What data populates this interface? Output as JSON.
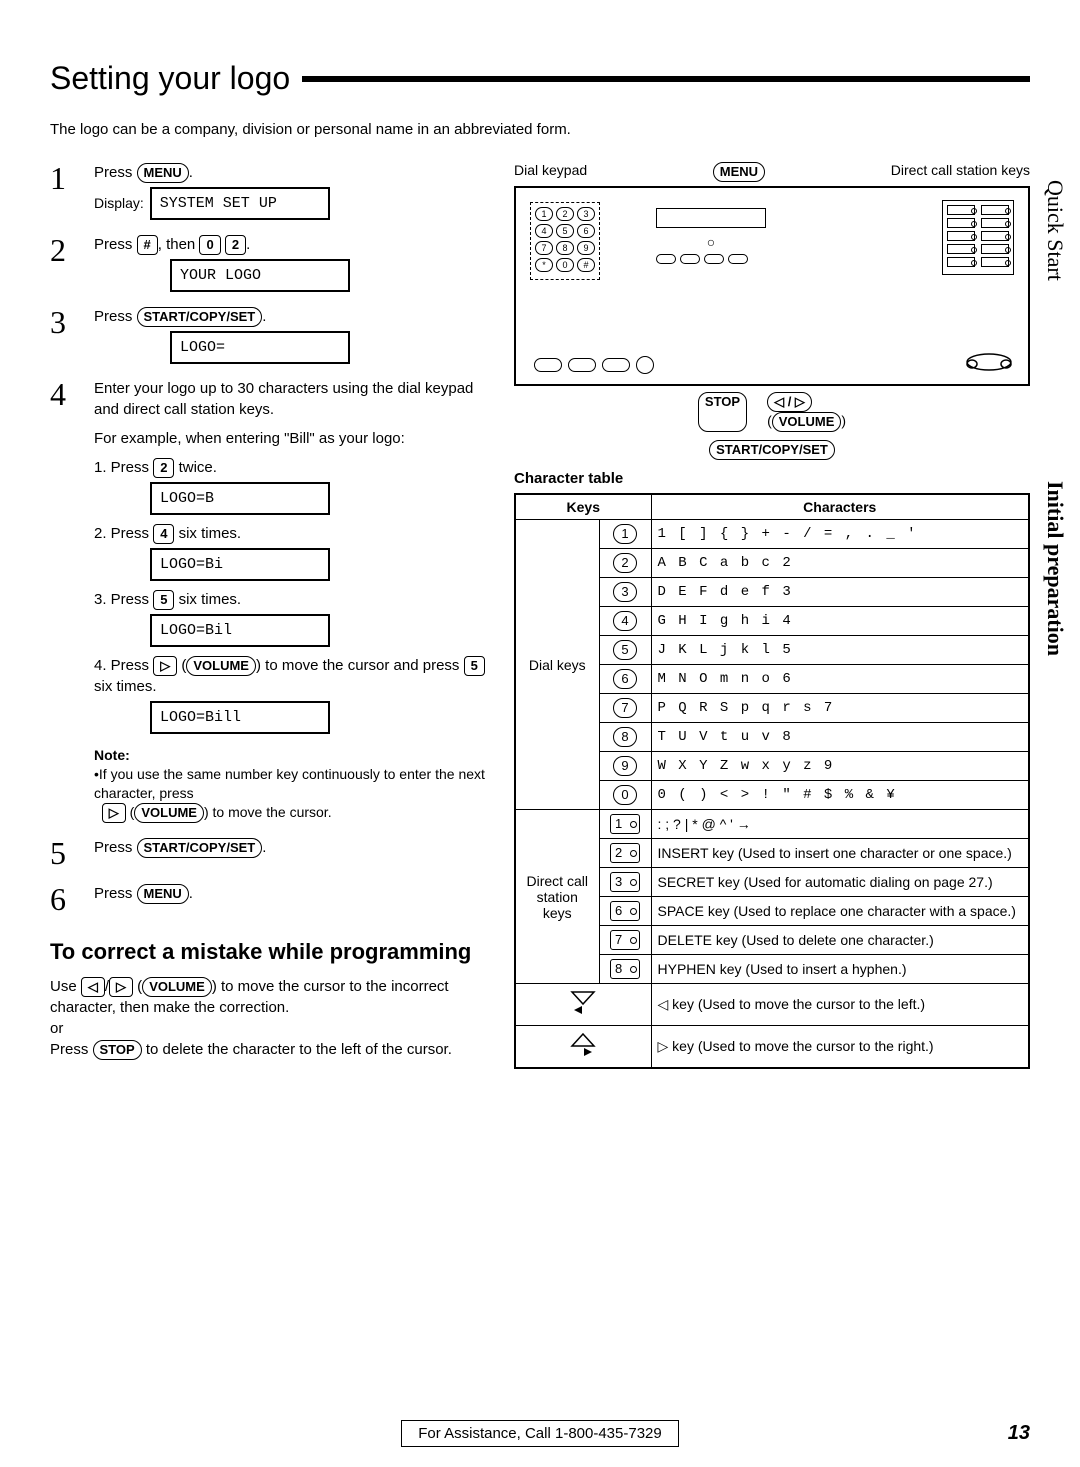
{
  "title": "Setting your logo",
  "intro": "The logo can be a company, division or personal name in an abbreviated form.",
  "side": {
    "top": "Quick Start",
    "bottom": "Initial preparation"
  },
  "steps": [
    {
      "num": "1",
      "text_before": "Press ",
      "key": "MENU",
      "text_after": ".",
      "display_label": "Display:",
      "display": "SYSTEM SET UP"
    },
    {
      "num": "2",
      "text_before": "Press ",
      "key": "#",
      "mid": ", then ",
      "key2": "0",
      "key3": "2",
      "text_after": ".",
      "display": "YOUR LOGO"
    },
    {
      "num": "3",
      "text_before": "Press ",
      "key": "START/COPY/SET",
      "text_after": ".",
      "display": "LOGO="
    },
    {
      "num": "4",
      "text": "Enter your logo up to 30 characters using the dial keypad and direct call station keys.",
      "example_intro": "For example, when entering \"Bill\" as your logo:",
      "subs": [
        {
          "label": "1. Press ",
          "key": "2",
          "after": " twice.",
          "display": "LOGO=B"
        },
        {
          "label": "2. Press ",
          "key": "4",
          "after": " six times.",
          "display": "LOGO=Bi"
        },
        {
          "label": "3. Press ",
          "key": "5",
          "after": " six times.",
          "display": "LOGO=Bil"
        },
        {
          "label": "4. Press ",
          "key": "▷",
          "vol": "VOLUME",
          "after": " to move the cursor and press ",
          "key2": "5",
          "after2": " six times.",
          "display": "LOGO=Bill"
        }
      ],
      "note_title": "Note:",
      "note": "If you use the same number key continuously to enter the next character, press ",
      "note_key": "▷",
      "note_vol": "VOLUME",
      "note_after": " to move the cursor."
    },
    {
      "num": "5",
      "text_before": "Press ",
      "key": "START/COPY/SET",
      "text_after": "."
    },
    {
      "num": "6",
      "text_before": "Press ",
      "key": "MENU",
      "text_after": "."
    }
  ],
  "correct": {
    "heading": "To correct a mistake while programming",
    "p1a": "Use ",
    "k1": "◁",
    "k2": "▷",
    "vol": "VOLUME",
    "p1b": " to move the cursor to the incorrect character, then make the correction.",
    "or": "or",
    "p2a": "Press ",
    "stop": "STOP",
    "p2b": " to delete the character to the left of the cursor."
  },
  "diagram": {
    "label_dial": "Dial keypad",
    "label_menu": "MENU",
    "label_station": "Direct call station keys",
    "below_stop": "STOP",
    "below_arrows": "◁ / ▷",
    "below_vol": "VOLUME",
    "below_scs": "START/COPY/SET"
  },
  "char_table": {
    "title": "Character table",
    "col_keys": "Keys",
    "col_chars": "Characters",
    "group_dial": "Dial keys",
    "group_station": "Direct call station keys",
    "rows_dial": [
      {
        "btn": "1",
        "chars": "1 [ ] { } + - / = , . _ '"
      },
      {
        "btn": "2",
        "chars": "A B C a b c 2"
      },
      {
        "btn": "3",
        "chars": "D E F d e f 3"
      },
      {
        "btn": "4",
        "chars": "G H I g h i 4"
      },
      {
        "btn": "5",
        "chars": "J K L j k l 5"
      },
      {
        "btn": "6",
        "chars": "M N O m n o 6"
      },
      {
        "btn": "7",
        "chars": "P Q R S p q r s 7"
      },
      {
        "btn": "8",
        "chars": "T U V t u v 8"
      },
      {
        "btn": "9",
        "chars": "W X Y Z w x y z 9"
      },
      {
        "btn": "0",
        "chars": "0 ( ) < > ! \" # $ % & ¥"
      }
    ],
    "rows_station": [
      {
        "btn": "1",
        "chars": ": ; ? | * @ ^ ' →"
      },
      {
        "btn": "2",
        "chars": "INSERT key (Used to insert one character or one space.)"
      },
      {
        "btn": "3",
        "chars": "SECRET key (Used for automatic dialing on page 27.)"
      },
      {
        "btn": "6",
        "chars": "SPACE key (Used to replace one character with a space.)"
      },
      {
        "btn": "7",
        "chars": "DELETE key (Used to delete one character.)"
      },
      {
        "btn": "8",
        "chars": "HYPHEN key (Used to insert a hyphen.)"
      }
    ],
    "rows_arrow": [
      {
        "icon": "down-left",
        "chars": "◁ key (Used to move the cursor to the left.)"
      },
      {
        "icon": "up-right",
        "chars": "▷ key (Used to move the cursor to the right.)"
      }
    ]
  },
  "footer": {
    "assist": "For Assistance, Call 1-800-435-7329",
    "page": "13"
  }
}
